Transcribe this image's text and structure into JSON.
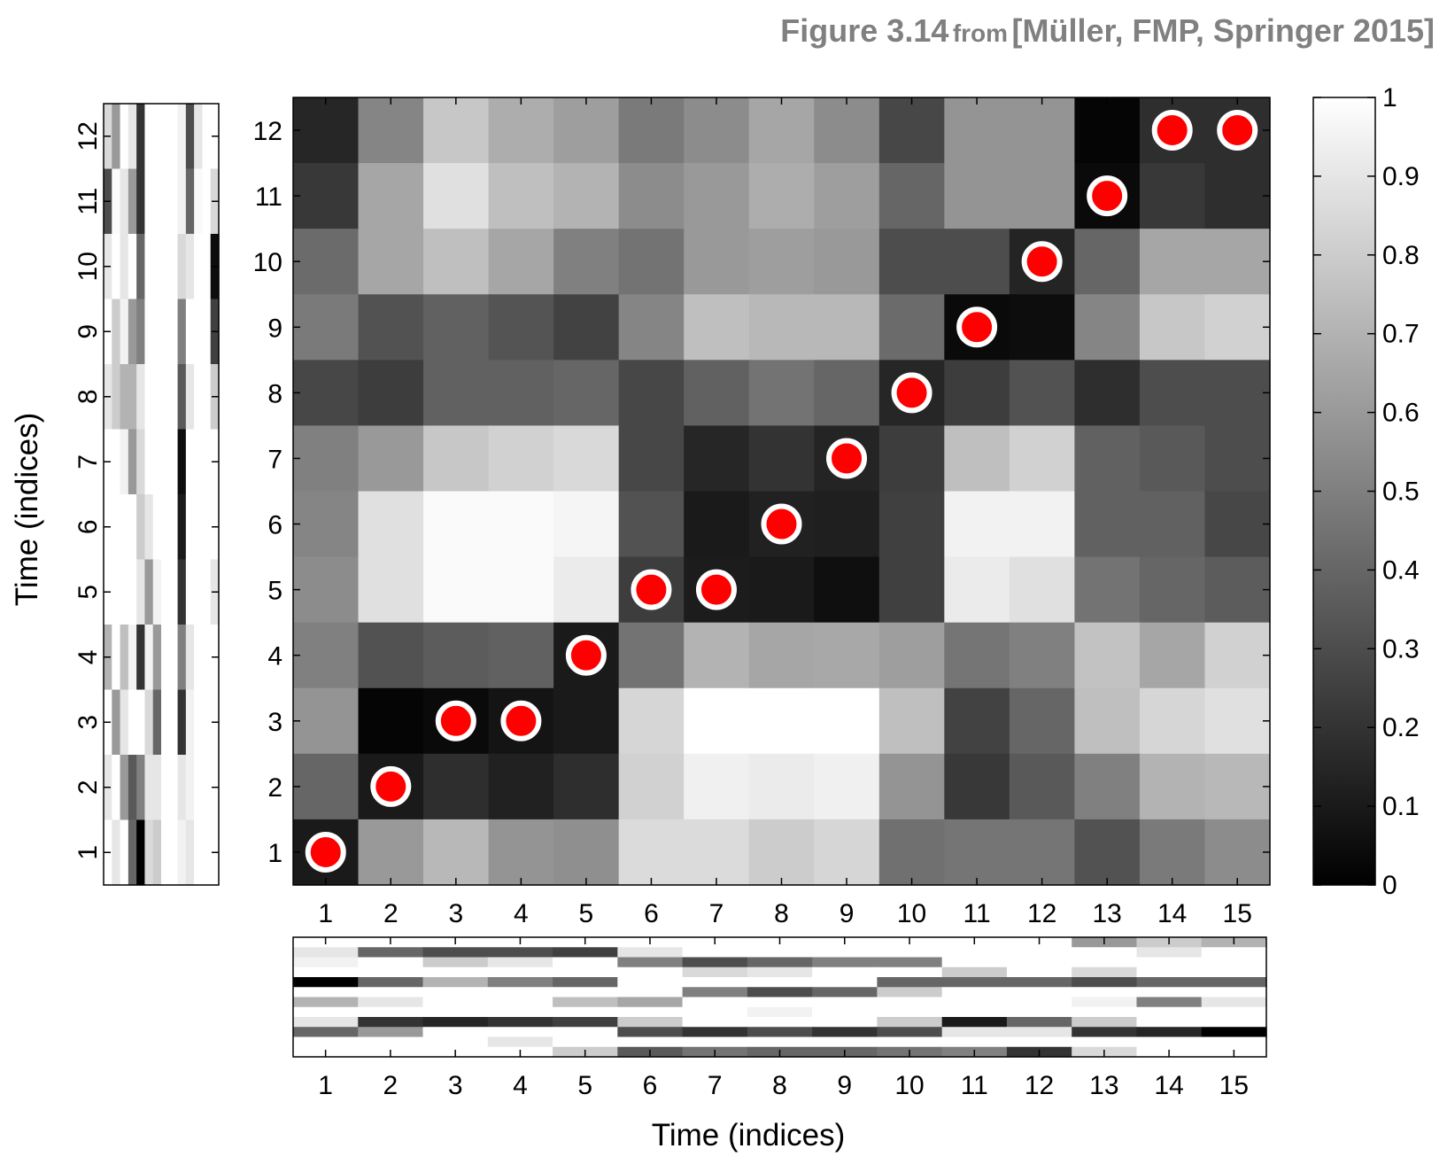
{
  "header": {
    "figure_label": "Figure 3.14",
    "from_label": "from",
    "citation": "[Müller, FMP, Springer 2015]"
  },
  "chart_data": [
    {
      "type": "heatmap",
      "name": "cost-matrix",
      "colormap": "gray",
      "xlabel": "Time (indices)",
      "ylabel": "Time (indices)",
      "x_ticks": [
        1,
        2,
        3,
        4,
        5,
        6,
        7,
        8,
        9,
        10,
        11,
        12,
        13,
        14,
        15
      ],
      "y_ticks": [
        1,
        2,
        3,
        4,
        5,
        6,
        7,
        8,
        9,
        10,
        11,
        12
      ],
      "clim": [
        0,
        1
      ],
      "colorbar_ticks": [
        "0",
        "0.1",
        "0.2",
        "0.3",
        "0.4",
        "0.5",
        "0.6",
        "0.7",
        "0.8",
        "0.9",
        "1"
      ],
      "values_rows_top_to_bottom": [
        [
          0.15,
          0.52,
          0.78,
          0.68,
          0.62,
          0.48,
          0.55,
          0.65,
          0.55,
          0.28,
          0.58,
          0.58,
          0.02,
          0.18,
          0.18
        ],
        [
          0.22,
          0.65,
          0.88,
          0.75,
          0.7,
          0.55,
          0.6,
          0.68,
          0.62,
          0.4,
          0.58,
          0.58,
          0.04,
          0.22,
          0.18
        ],
        [
          0.42,
          0.65,
          0.75,
          0.65,
          0.5,
          0.45,
          0.6,
          0.62,
          0.6,
          0.3,
          0.3,
          0.14,
          0.4,
          0.65,
          0.65
        ],
        [
          0.48,
          0.32,
          0.38,
          0.33,
          0.26,
          0.52,
          0.75,
          0.72,
          0.72,
          0.42,
          0.04,
          0.05,
          0.52,
          0.78,
          0.82
        ],
        [
          0.28,
          0.24,
          0.38,
          0.38,
          0.4,
          0.28,
          0.38,
          0.45,
          0.4,
          0.15,
          0.24,
          0.32,
          0.18,
          0.3,
          0.3
        ],
        [
          0.5,
          0.6,
          0.78,
          0.82,
          0.85,
          0.28,
          0.15,
          0.2,
          0.14,
          0.24,
          0.75,
          0.82,
          0.38,
          0.35,
          0.3
        ],
        [
          0.52,
          0.88,
          0.98,
          0.98,
          0.96,
          0.32,
          0.1,
          0.13,
          0.12,
          0.25,
          0.95,
          0.95,
          0.38,
          0.38,
          0.28
        ],
        [
          0.55,
          0.88,
          0.98,
          0.98,
          0.92,
          0.24,
          0.11,
          0.1,
          0.06,
          0.25,
          0.92,
          0.88,
          0.45,
          0.4,
          0.36
        ],
        [
          0.5,
          0.32,
          0.36,
          0.38,
          0.1,
          0.45,
          0.7,
          0.65,
          0.66,
          0.62,
          0.46,
          0.5,
          0.76,
          0.65,
          0.82
        ],
        [
          0.58,
          0.02,
          0.04,
          0.08,
          0.1,
          0.84,
          1.0,
          1.0,
          1.0,
          0.75,
          0.26,
          0.4,
          0.75,
          0.84,
          0.88
        ],
        [
          0.4,
          0.1,
          0.18,
          0.13,
          0.18,
          0.82,
          0.94,
          0.92,
          0.94,
          0.58,
          0.22,
          0.35,
          0.5,
          0.7,
          0.72
        ],
        [
          0.1,
          0.6,
          0.72,
          0.58,
          0.56,
          0.86,
          0.86,
          0.8,
          0.84,
          0.44,
          0.46,
          0.46,
          0.32,
          0.48,
          0.55
        ]
      ],
      "path": [
        [
          1,
          1
        ],
        [
          2,
          2
        ],
        [
          3,
          3
        ],
        [
          4,
          3
        ],
        [
          5,
          4
        ],
        [
          6,
          5
        ],
        [
          7,
          5
        ],
        [
          8,
          6
        ],
        [
          9,
          7
        ],
        [
          10,
          8
        ],
        [
          11,
          9
        ],
        [
          12,
          10
        ],
        [
          13,
          11
        ],
        [
          14,
          12
        ],
        [
          15,
          12
        ]
      ],
      "path_color": "#ff0000",
      "path_edge_color": "#ffffff"
    },
    {
      "type": "heatmap",
      "name": "left-feature-sequence",
      "ylabel": "Time (indices)",
      "y_ticks": [
        1,
        2,
        3,
        4,
        5,
        6,
        7,
        8,
        9,
        10,
        11,
        12
      ],
      "values_rows_top_to_bottom": [
        [
          0.85,
          0.6,
          1.0,
          0.9,
          0.2,
          1.0,
          1.0,
          1.0,
          1.0,
          0.95,
          0.3,
          0.9,
          1.0,
          1.0
        ],
        [
          0.3,
          0.98,
          0.9,
          0.6,
          0.2,
          1.0,
          1.0,
          1.0,
          1.0,
          0.95,
          0.4,
          0.98,
          1.0,
          0.85
        ],
        [
          0.9,
          1.0,
          0.9,
          1.0,
          0.4,
          1.0,
          1.0,
          1.0,
          1.0,
          0.85,
          0.9,
          1.0,
          1.0,
          0.05
        ],
        [
          1.0,
          0.8,
          0.95,
          0.6,
          0.5,
          1.0,
          1.0,
          1.0,
          1.0,
          0.5,
          1.0,
          1.0,
          1.0,
          0.25
        ],
        [
          0.9,
          0.8,
          0.7,
          0.7,
          0.9,
          1.0,
          1.0,
          1.0,
          1.0,
          0.35,
          0.9,
          1.0,
          1.0,
          0.8
        ],
        [
          1.0,
          1.0,
          0.95,
          0.6,
          0.85,
          1.0,
          1.0,
          1.0,
          1.0,
          0.05,
          1.0,
          1.0,
          1.0,
          1.0
        ],
        [
          1.0,
          1.0,
          1.0,
          1.0,
          0.8,
          0.9,
          1.0,
          1.0,
          1.0,
          0.1,
          1.0,
          1.0,
          1.0,
          1.0
        ],
        [
          1.0,
          1.0,
          1.0,
          1.0,
          0.9,
          0.6,
          0.95,
          1.0,
          1.0,
          0.2,
          1.0,
          1.0,
          1.0,
          0.9
        ],
        [
          0.7,
          1.0,
          0.75,
          0.95,
          0.2,
          0.95,
          0.6,
          1.0,
          1.0,
          0.5,
          0.9,
          1.0,
          1.0,
          1.0
        ],
        [
          1.0,
          0.6,
          0.9,
          1.0,
          1.0,
          0.85,
          0.4,
          1.0,
          1.0,
          0.2,
          0.95,
          1.0,
          1.0,
          1.0
        ],
        [
          0.9,
          1.0,
          0.6,
          0.35,
          0.5,
          0.9,
          0.9,
          1.0,
          1.0,
          0.9,
          0.95,
          1.0,
          1.0,
          1.0
        ],
        [
          1.0,
          0.9,
          1.0,
          0.4,
          0.0,
          0.85,
          0.8,
          1.0,
          1.0,
          0.95,
          0.9,
          1.0,
          1.0,
          1.0
        ]
      ]
    },
    {
      "type": "heatmap",
      "name": "bottom-feature-sequence",
      "xlabel": "Time (indices)",
      "x_ticks": [
        1,
        2,
        3,
        4,
        5,
        6,
        7,
        8,
        9,
        10,
        11,
        12,
        13,
        14,
        15
      ],
      "values_rows_top_to_bottom": [
        [
          1.0,
          1.0,
          1.0,
          1.0,
          1.0,
          1.0,
          1.0,
          1.0,
          1.0,
          1.0,
          1.0,
          1.0,
          0.6,
          0.8,
          0.7
        ],
        [
          0.9,
          0.4,
          0.3,
          0.3,
          0.25,
          0.9,
          1.0,
          1.0,
          1.0,
          1.0,
          1.0,
          1.0,
          1.0,
          0.9,
          1.0
        ],
        [
          0.95,
          1.0,
          0.8,
          0.9,
          1.0,
          0.5,
          0.3,
          0.4,
          0.5,
          0.5,
          1.0,
          1.0,
          1.0,
          1.0,
          1.0
        ],
        [
          1.0,
          1.0,
          1.0,
          1.0,
          1.0,
          1.0,
          0.85,
          0.9,
          1.0,
          1.0,
          0.8,
          1.0,
          0.85,
          1.0,
          1.0
        ],
        [
          0.0,
          0.4,
          0.7,
          0.5,
          0.4,
          1.0,
          1.0,
          1.0,
          1.0,
          0.4,
          0.4,
          0.4,
          0.3,
          0.4,
          0.4
        ],
        [
          1.0,
          1.0,
          1.0,
          1.0,
          1.0,
          1.0,
          0.5,
          0.3,
          0.4,
          0.8,
          1.0,
          1.0,
          1.0,
          1.0,
          1.0
        ],
        [
          0.7,
          0.9,
          1.0,
          1.0,
          0.75,
          0.65,
          1.0,
          1.0,
          1.0,
          1.0,
          1.0,
          1.0,
          0.95,
          0.5,
          0.9
        ],
        [
          1.0,
          1.0,
          1.0,
          1.0,
          1.0,
          1.0,
          1.0,
          0.95,
          1.0,
          1.0,
          1.0,
          1.0,
          1.0,
          1.0,
          1.0
        ],
        [
          0.9,
          0.2,
          0.15,
          0.2,
          0.25,
          0.8,
          1.0,
          1.0,
          1.0,
          0.8,
          0.1,
          0.4,
          0.8,
          1.0,
          1.0
        ],
        [
          0.4,
          0.6,
          1.0,
          1.0,
          1.0,
          0.3,
          0.2,
          0.3,
          0.2,
          0.3,
          0.9,
          0.9,
          0.2,
          0.15,
          0.0
        ],
        [
          1.0,
          1.0,
          1.0,
          0.9,
          1.0,
          1.0,
          1.0,
          1.0,
          1.0,
          1.0,
          1.0,
          1.0,
          1.0,
          1.0,
          1.0
        ],
        [
          1.0,
          1.0,
          1.0,
          1.0,
          0.8,
          0.35,
          0.45,
          0.4,
          0.4,
          0.45,
          0.5,
          0.2,
          0.85,
          1.0,
          1.0
        ]
      ]
    }
  ]
}
